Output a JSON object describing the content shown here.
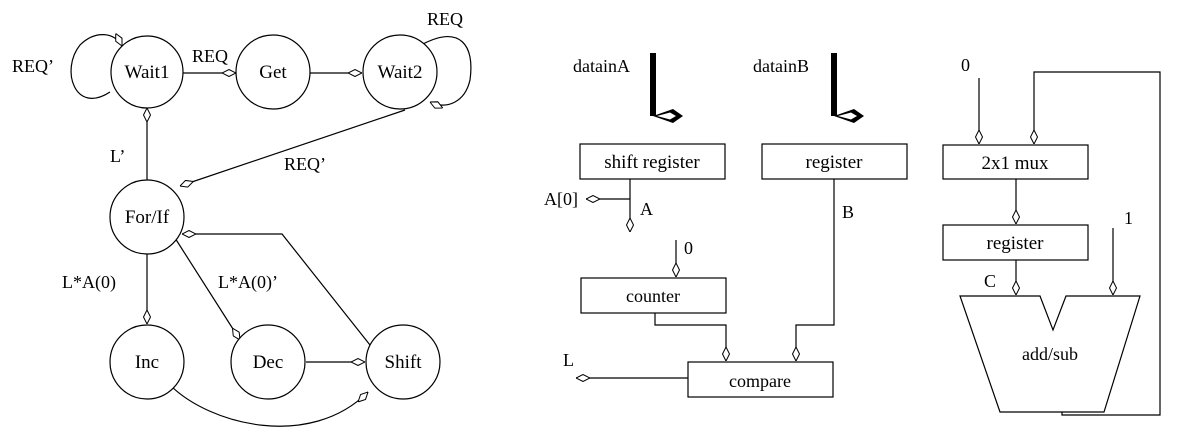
{
  "fsm": {
    "states": {
      "wait1": "Wait1",
      "get": "Get",
      "wait2": "Wait2",
      "forif": "For/If",
      "inc": "Inc",
      "dec": "Dec",
      "shift": "Shift"
    },
    "edges": {
      "wait1_self": "REQ’",
      "wait1_get": "REQ",
      "wait2_self": "REQ",
      "wait2_forif": "REQ’",
      "forif_wait1": "L’",
      "forif_inc": "L*A(0)",
      "forif_dec": "L*A(0)’"
    }
  },
  "datapath1": {
    "inputs": {
      "a": "datainA",
      "b": "datainB"
    },
    "blocks": {
      "shift_register": "shift register",
      "register": "register",
      "counter": "counter",
      "compare": "compare"
    },
    "signals": {
      "a0": "A[0]",
      "a": "A",
      "b": "B",
      "counter_in": "0",
      "l": "L"
    }
  },
  "datapath2": {
    "blocks": {
      "mux": "2x1 mux",
      "register": "register",
      "addsub": "add/sub"
    },
    "signals": {
      "zero": "0",
      "one": "1",
      "c": "C"
    }
  }
}
